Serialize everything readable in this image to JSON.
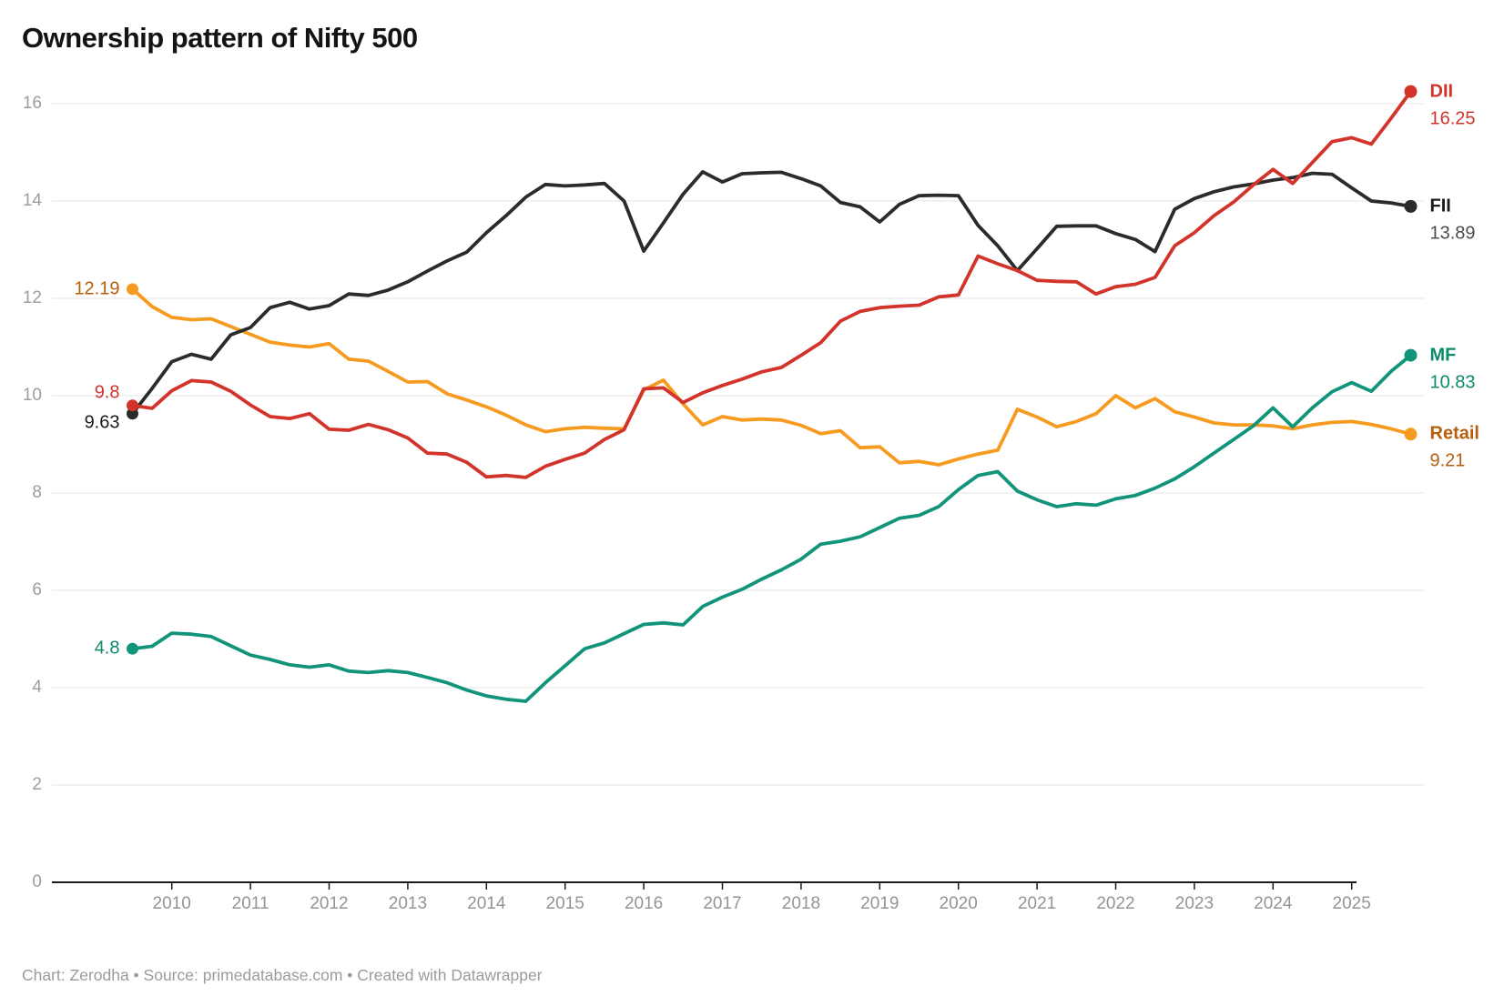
{
  "title": "Ownership pattern of Nifty 500",
  "footer": "Chart: Zerodha • Source: primedatabase.com • Created with Datawrapper",
  "colors": {
    "background": "#ffffff",
    "title_text": "#141414",
    "gridline": "#e4e4e4",
    "axis_line": "#1a1a1a",
    "tick_text": "#9d9d9d",
    "footer_text": "#9b9b9b"
  },
  "chart_data": {
    "type": "line",
    "title": "Ownership pattern of Nifty 500",
    "frequency": "quarterly",
    "x_start": 2009.5,
    "x_step": 0.25,
    "x_start_label": "Jun 2009",
    "x_end_label": "Sep 2025",
    "xlim": [
      2009.25,
      2026.0
    ],
    "ylim": [
      0,
      16.6
    ],
    "grid": "horizontal",
    "legend_position": "right-edge-labels",
    "x_axis": {
      "tick_years": [
        2010,
        2011,
        2012,
        2013,
        2014,
        2015,
        2016,
        2017,
        2018,
        2019,
        2020,
        2021,
        2022,
        2023,
        2024,
        2025
      ]
    },
    "y_axis": {
      "ticks": [
        0,
        2,
        4,
        6,
        8,
        10,
        12,
        14,
        16
      ]
    },
    "series": [
      {
        "name": "Retail",
        "line_color": "#f79b20",
        "label_color": "#b55e0b",
        "start_label": "12.19",
        "end_label_name": "Retail",
        "end_label_value": "9.21",
        "values": [
          12.19,
          11.83,
          11.61,
          11.56,
          11.58,
          11.42,
          11.26,
          11.1,
          11.04,
          11.0,
          11.07,
          10.75,
          10.71,
          10.5,
          10.28,
          10.29,
          10.04,
          9.91,
          9.77,
          9.6,
          9.4,
          9.26,
          9.32,
          9.35,
          9.33,
          9.32,
          10.12,
          10.32,
          9.83,
          9.4,
          9.57,
          9.5,
          9.52,
          9.5,
          9.39,
          9.22,
          9.28,
          8.93,
          8.95,
          8.62,
          8.65,
          8.58,
          8.7,
          8.8,
          8.88,
          9.72,
          9.56,
          9.36,
          9.47,
          9.63,
          10.0,
          9.75,
          9.94,
          9.67,
          9.56,
          9.44,
          9.4,
          9.4,
          9.38,
          9.32,
          9.4,
          9.45,
          9.47,
          9.41,
          9.32,
          9.21
        ]
      },
      {
        "name": "MF",
        "line_color": "#12947a",
        "label_color": "#0c8a6c",
        "start_label": "4.8",
        "end_label_name": "MF",
        "end_label_value": "10.83",
        "values": [
          4.8,
          4.85,
          5.12,
          5.1,
          5.05,
          4.86,
          4.67,
          4.58,
          4.47,
          4.42,
          4.47,
          4.34,
          4.31,
          4.35,
          4.31,
          4.21,
          4.1,
          3.95,
          3.83,
          3.76,
          3.72,
          4.1,
          4.45,
          4.8,
          4.92,
          5.11,
          5.3,
          5.33,
          5.29,
          5.67,
          5.86,
          6.02,
          6.23,
          6.42,
          6.64,
          6.95,
          7.01,
          7.1,
          7.29,
          7.48,
          7.54,
          7.72,
          8.07,
          8.36,
          8.44,
          8.04,
          7.86,
          7.72,
          7.78,
          7.75,
          7.88,
          7.95,
          8.1,
          8.29,
          8.54,
          8.82,
          9.1,
          9.38,
          9.75,
          9.36,
          9.75,
          10.08,
          10.27,
          10.09,
          10.5,
          10.83
        ]
      },
      {
        "name": "FII",
        "line_color": "#2b2b2b",
        "label_color": "#1a1a1a",
        "value_color": "#4d4d4d",
        "start_label": "9.63",
        "end_label_name": "FII",
        "end_label_value": "13.89",
        "values": [
          9.63,
          10.15,
          10.7,
          10.85,
          10.75,
          11.25,
          11.4,
          11.81,
          11.92,
          11.78,
          11.85,
          12.09,
          12.06,
          12.17,
          12.34,
          12.56,
          12.77,
          12.95,
          13.35,
          13.7,
          14.08,
          14.34,
          14.31,
          14.33,
          14.36,
          14.0,
          12.97,
          13.55,
          14.14,
          14.6,
          14.39,
          14.56,
          14.58,
          14.59,
          14.46,
          14.31,
          13.97,
          13.88,
          13.57,
          13.93,
          14.11,
          14.12,
          14.11,
          13.5,
          13.08,
          12.57,
          13.02,
          13.48,
          13.49,
          13.49,
          13.33,
          13.21,
          12.96,
          13.83,
          14.05,
          14.19,
          14.29,
          14.35,
          14.43,
          14.48,
          14.57,
          14.55,
          14.27,
          14.0,
          13.96,
          13.89
        ]
      },
      {
        "name": "DII",
        "line_color": "#d2342b",
        "label_color": "#d0342c",
        "start_label": "9.8",
        "end_label_name": "DII",
        "end_label_value": "16.25",
        "values": [
          9.8,
          9.74,
          10.1,
          10.31,
          10.28,
          10.09,
          9.81,
          9.57,
          9.53,
          9.63,
          9.31,
          9.29,
          9.41,
          9.3,
          9.13,
          8.82,
          8.8,
          8.63,
          8.33,
          8.36,
          8.32,
          8.55,
          8.69,
          8.82,
          9.1,
          9.3,
          10.14,
          10.16,
          9.86,
          10.06,
          10.21,
          10.34,
          10.49,
          10.58,
          10.83,
          11.09,
          11.53,
          11.73,
          11.81,
          11.84,
          11.86,
          12.03,
          12.07,
          12.87,
          12.71,
          12.57,
          12.37,
          12.35,
          12.34,
          12.09,
          12.24,
          12.29,
          12.43,
          13.08,
          13.35,
          13.7,
          13.98,
          14.33,
          14.65,
          14.36,
          14.79,
          15.22,
          15.3,
          15.17,
          15.7,
          16.25
        ]
      }
    ]
  }
}
